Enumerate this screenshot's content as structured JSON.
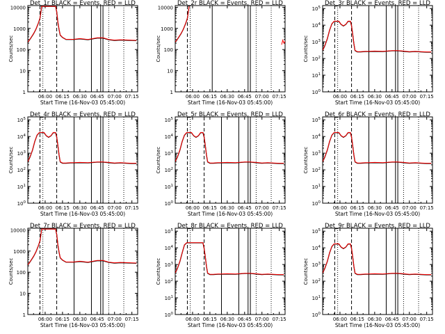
{
  "figure": {
    "x_ticks": [
      "06:00",
      "06:15",
      "06:30",
      "06:45",
      "07:00",
      "07:15"
    ],
    "xlabel": "Start Time (16-Nov-03 05:45:00)",
    "ylabel": "Counts/sec",
    "series_colors": {
      "events": "#000000",
      "lld": "#ff0000"
    }
  },
  "chart_data": [
    {
      "type": "line",
      "title": "Det_1r BLACK = Events, RED = LLD",
      "yscale": "log",
      "ylim": [
        1,
        12000
      ],
      "y_tick_labels": [
        "1",
        "10",
        "100",
        "1000",
        "10000"
      ],
      "xlim_minutes": [
        0,
        95
      ],
      "x_minutes": [
        0,
        1,
        3,
        5,
        7,
        9,
        10.5,
        12,
        18,
        24,
        25,
        26,
        27,
        28,
        30,
        33,
        37,
        40,
        45,
        52,
        60,
        65,
        70,
        75,
        80,
        85,
        90,
        94
      ],
      "series": [
        {
          "values": [
            220,
            260,
            380,
            560,
            900,
            1700,
            3000,
            11000,
            11000,
            11000,
            6000,
            2000,
            900,
            480,
            370,
            300,
            300,
            300,
            320,
            290,
            350,
            350,
            290,
            270,
            280,
            275,
            270,
            265
          ]
        },
        {
          "values": [
            225,
            265,
            385,
            570,
            910,
            1720,
            3050,
            11000,
            11000,
            11000,
            6100,
            2050,
            920,
            490,
            380,
            305,
            305,
            305,
            330,
            300,
            360,
            360,
            300,
            280,
            290,
            285,
            278,
            272
          ]
        }
      ],
      "markers": {
        "dashed": [
          10.5,
          25
        ],
        "solid": [
          40,
          55,
          63,
          65
        ],
        "dotted": [
          13,
          70,
          83
        ]
      }
    },
    {
      "type": "line",
      "title": "Det_2r BLACK = Events, RED = LLD",
      "yscale": "log",
      "ylim": [
        1,
        12000
      ],
      "y_tick_labels": [
        "1",
        "10",
        "100",
        "1000",
        "10000"
      ],
      "xlim_minutes": [
        0,
        95
      ],
      "x_minutes": [
        0,
        1,
        3,
        5,
        7,
        9,
        10.5,
        12
      ],
      "series": [
        {
          "values": [
            220,
            260,
            380,
            560,
            900,
            1700,
            3000,
            11000
          ]
        },
        {
          "values": [
            225,
            265,
            385,
            570,
            910,
            1720,
            3050,
            11000
          ]
        }
      ],
      "extra_segment": {
        "x_minutes": [
          92,
          93,
          94,
          95
        ],
        "values": [
          170,
          280,
          200,
          250
        ]
      },
      "markers": {
        "dashed": [
          10.5
        ],
        "solid": [
          32,
          63,
          65
        ],
        "dotted": [
          13,
          70,
          83
        ]
      }
    },
    {
      "type": "line",
      "title": "Det_3r BLACK = Events, RED = LLD",
      "yscale": "log",
      "ylim": [
        1,
        150000
      ],
      "y_tick_labels": [
        "10^0",
        "10^1",
        "10^2",
        "10^3",
        "10^4",
        "10^5"
      ],
      "xlim_minutes": [
        0,
        95
      ],
      "x_minutes": [
        0,
        2,
        4,
        6,
        8,
        10,
        12,
        14,
        16,
        18,
        20,
        22,
        24,
        25,
        26,
        27,
        28,
        30,
        33,
        37,
        40,
        45,
        52,
        60,
        65,
        70,
        75,
        80,
        85,
        90,
        94
      ],
      "series": [
        {
          "values": [
            300,
            600,
            1500,
            5000,
            12000,
            17000,
            17000,
            17000,
            11000,
            9000,
            11000,
            17000,
            17000,
            9000,
            3000,
            800,
            300,
            250,
            250,
            260,
            260,
            270,
            260,
            290,
            290,
            270,
            250,
            260,
            250,
            240,
            240
          ]
        },
        {
          "values": [
            310,
            620,
            1550,
            5100,
            12300,
            17400,
            17400,
            17400,
            11300,
            9200,
            11300,
            17400,
            17400,
            9200,
            3100,
            820,
            310,
            258,
            258,
            268,
            268,
            278,
            268,
            298,
            298,
            278,
            258,
            268,
            258,
            248,
            248
          ]
        }
      ],
      "markers": {
        "dashed": [
          10.5,
          25
        ],
        "solid": [
          40,
          55,
          63,
          65
        ],
        "dotted": [
          13,
          70,
          83
        ]
      }
    },
    {
      "type": "line",
      "title": "Det_4r BLACK = Events, RED = LLD",
      "yscale": "log",
      "ylim": [
        1,
        150000
      ],
      "y_tick_labels": [
        "10^0",
        "10^1",
        "10^2",
        "10^3",
        "10^4",
        "10^5"
      ],
      "xlim_minutes": [
        0,
        95
      ],
      "x_minutes": [
        0,
        2,
        4,
        6,
        8,
        10,
        12,
        14,
        16,
        18,
        20,
        22,
        24,
        25,
        26,
        27,
        28,
        30,
        33,
        37,
        40,
        45,
        52,
        60,
        65,
        70,
        75,
        80,
        85,
        90,
        94
      ],
      "series": [
        {
          "values": [
            300,
            600,
            1500,
            5000,
            12000,
            17000,
            17000,
            17000,
            11000,
            9000,
            11000,
            17000,
            17000,
            9000,
            3000,
            800,
            300,
            250,
            250,
            260,
            260,
            270,
            260,
            290,
            290,
            270,
            250,
            260,
            250,
            240,
            240
          ]
        },
        {
          "values": [
            310,
            620,
            1550,
            5100,
            12300,
            17400,
            17400,
            17400,
            11300,
            9200,
            11300,
            17400,
            17400,
            9200,
            3100,
            820,
            310,
            258,
            258,
            268,
            268,
            278,
            268,
            298,
            298,
            278,
            258,
            268,
            258,
            248,
            248
          ]
        }
      ],
      "markers": {
        "dashed": [
          10.5,
          25
        ],
        "solid": [
          40,
          55,
          63,
          65
        ],
        "dotted": [
          13,
          70,
          83
        ]
      }
    },
    {
      "type": "line",
      "title": "Det_5r BLACK = Events, RED = LLD",
      "yscale": "log",
      "ylim": [
        1,
        150000
      ],
      "y_tick_labels": [
        "10^0",
        "10^1",
        "10^2",
        "10^3",
        "10^4",
        "10^5"
      ],
      "xlim_minutes": [
        0,
        95
      ],
      "x_minutes": [
        0,
        2,
        4,
        6,
        8,
        10,
        12,
        14,
        16,
        18,
        20,
        22,
        24,
        25,
        26,
        27,
        28,
        30,
        33,
        37,
        40,
        45,
        52,
        60,
        65,
        70,
        75,
        80,
        85,
        90,
        94
      ],
      "series": [
        {
          "values": [
            300,
            600,
            1500,
            5000,
            12000,
            17000,
            17000,
            17000,
            11000,
            9000,
            11000,
            17000,
            17000,
            9000,
            3000,
            800,
            300,
            250,
            250,
            260,
            260,
            270,
            260,
            290,
            290,
            270,
            250,
            260,
            250,
            240,
            240
          ]
        },
        {
          "values": [
            310,
            620,
            1550,
            5100,
            12300,
            17400,
            17400,
            17400,
            11300,
            9200,
            11300,
            17400,
            17400,
            9200,
            3100,
            820,
            310,
            258,
            258,
            268,
            268,
            278,
            268,
            298,
            298,
            278,
            258,
            268,
            258,
            248,
            248
          ]
        }
      ],
      "markers": {
        "dashed": [
          10.5,
          25
        ],
        "solid": [
          40,
          55,
          63,
          65
        ],
        "dotted": [
          13,
          70,
          83
        ]
      }
    },
    {
      "type": "line",
      "title": "Det_6r BLACK = Events, RED = LLD",
      "yscale": "log",
      "ylim": [
        1,
        150000
      ],
      "y_tick_labels": [
        "10^0",
        "10^1",
        "10^2",
        "10^3",
        "10^4",
        "10^5"
      ],
      "xlim_minutes": [
        0,
        95
      ],
      "x_minutes": [
        0,
        2,
        4,
        6,
        8,
        10,
        12,
        14,
        16,
        18,
        20,
        22,
        24,
        25,
        26,
        27,
        28,
        30,
        33,
        37,
        40,
        45,
        52,
        60,
        65,
        70,
        75,
        80,
        85,
        90,
        94
      ],
      "series": [
        {
          "values": [
            300,
            600,
            1500,
            5000,
            12000,
            17000,
            17000,
            17000,
            11000,
            9000,
            11000,
            17000,
            17000,
            9000,
            3000,
            800,
            300,
            250,
            250,
            260,
            260,
            270,
            260,
            290,
            290,
            270,
            250,
            260,
            250,
            240,
            240
          ]
        },
        {
          "values": [
            310,
            620,
            1550,
            5100,
            12300,
            17400,
            17400,
            17400,
            11300,
            9200,
            11300,
            17400,
            17400,
            9200,
            3100,
            820,
            310,
            258,
            258,
            268,
            268,
            278,
            268,
            298,
            298,
            278,
            258,
            268,
            258,
            248,
            248
          ]
        }
      ],
      "markers": {
        "dashed": [
          10.5,
          25
        ],
        "solid": [
          40,
          55,
          63,
          65
        ],
        "dotted": [
          13,
          70,
          83
        ]
      }
    },
    {
      "type": "line",
      "title": "Det_7r BLACK = Events, RED = LLD",
      "yscale": "log",
      "ylim": [
        1,
        12000
      ],
      "y_tick_labels": [
        "1",
        "10",
        "100",
        "1000",
        "10000"
      ],
      "xlim_minutes": [
        0,
        95
      ],
      "x_minutes": [
        0,
        1,
        3,
        5,
        7,
        9,
        10.5,
        12,
        18,
        24,
        25,
        26,
        27,
        28,
        30,
        33,
        37,
        40,
        45,
        52,
        60,
        65,
        70,
        75,
        80,
        85,
        90,
        94
      ],
      "series": [
        {
          "values": [
            220,
            260,
            380,
            560,
            900,
            1700,
            3000,
            11000,
            11000,
            11000,
            6000,
            2000,
            900,
            480,
            370,
            300,
            300,
            300,
            320,
            290,
            350,
            350,
            290,
            270,
            280,
            275,
            270,
            265
          ]
        },
        {
          "values": [
            225,
            265,
            385,
            570,
            910,
            1720,
            3050,
            11000,
            11000,
            11000,
            6100,
            2050,
            920,
            490,
            380,
            305,
            305,
            305,
            330,
            300,
            360,
            360,
            300,
            280,
            290,
            285,
            278,
            272
          ]
        }
      ],
      "markers": {
        "dashed": [
          10.5,
          25
        ],
        "solid": [
          40,
          55,
          63,
          65
        ],
        "dotted": [
          13,
          70,
          83
        ]
      }
    },
    {
      "type": "line",
      "title": "Det_8r BLACK = Events, RED = LLD",
      "yscale": "log",
      "ylim": [
        1,
        150000
      ],
      "y_tick_labels": [
        "10^0",
        "10^1",
        "10^2",
        "10^3",
        "10^4",
        "10^5"
      ],
      "xlim_minutes": [
        0,
        95
      ],
      "x_minutes": [
        0,
        2,
        4,
        6,
        8,
        10,
        12,
        14,
        16,
        18,
        20,
        22,
        24,
        25,
        26,
        27,
        28,
        30,
        33,
        37,
        40,
        45,
        52,
        60,
        65,
        70,
        75,
        80,
        85,
        90,
        94
      ],
      "series": [
        {
          "values": [
            300,
            600,
            1500,
            5000,
            15000,
            20000,
            20000,
            20000,
            20000,
            20000,
            20000,
            20000,
            20000,
            9000,
            3000,
            800,
            300,
            250,
            250,
            260,
            260,
            270,
            260,
            290,
            290,
            270,
            250,
            260,
            250,
            240,
            240
          ]
        },
        {
          "values": [
            310,
            620,
            1550,
            5100,
            15300,
            20400,
            20400,
            20400,
            20400,
            20400,
            20400,
            20400,
            20400,
            9200,
            3100,
            820,
            310,
            258,
            258,
            268,
            268,
            278,
            268,
            298,
            298,
            278,
            258,
            268,
            258,
            248,
            248
          ]
        }
      ],
      "markers": {
        "dashed": [
          10.5,
          25
        ],
        "solid": [
          40,
          55,
          63,
          65
        ],
        "dotted": [
          13,
          70,
          83
        ]
      }
    },
    {
      "type": "line",
      "title": "Det_9r BLACK = Events, RED = LLD",
      "yscale": "log",
      "ylim": [
        1,
        150000
      ],
      "y_tick_labels": [
        "10^0",
        "10^1",
        "10^2",
        "10^3",
        "10^4",
        "10^5"
      ],
      "xlim_minutes": [
        0,
        95
      ],
      "x_minutes": [
        0,
        2,
        4,
        6,
        8,
        10,
        12,
        14,
        16,
        18,
        20,
        22,
        24,
        25,
        26,
        27,
        28,
        30,
        33,
        37,
        40,
        45,
        52,
        60,
        65,
        70,
        75,
        80,
        85,
        90,
        94
      ],
      "series": [
        {
          "values": [
            300,
            600,
            1500,
            5000,
            12000,
            17000,
            17000,
            17000,
            11000,
            9000,
            11000,
            17000,
            17000,
            9000,
            3000,
            800,
            300,
            250,
            250,
            260,
            260,
            270,
            260,
            290,
            290,
            270,
            250,
            260,
            250,
            240,
            240
          ]
        },
        {
          "values": [
            310,
            620,
            1550,
            5100,
            12300,
            17400,
            17400,
            17400,
            11300,
            9200,
            11300,
            17400,
            17400,
            9200,
            3100,
            820,
            310,
            258,
            258,
            268,
            268,
            278,
            268,
            298,
            298,
            278,
            258,
            268,
            258,
            248,
            248
          ]
        }
      ],
      "markers": {
        "dashed": [
          10.5,
          25
        ],
        "solid": [
          40,
          55,
          63,
          65
        ],
        "dotted": [
          13,
          70,
          83
        ]
      }
    }
  ]
}
